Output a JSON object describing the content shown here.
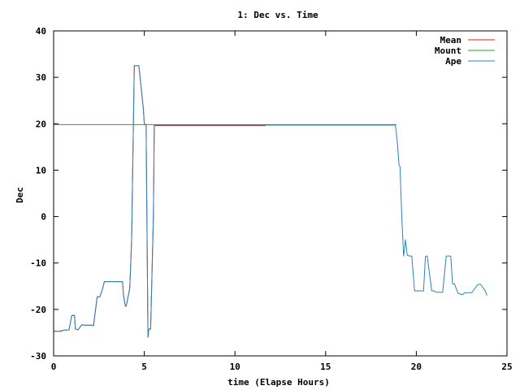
{
  "chart_data": {
    "type": "line",
    "title": "1: Dec vs. Time",
    "xlabel": "time (Elapse Hours)",
    "ylabel": "Dec",
    "xlim": [
      0,
      25
    ],
    "ylim": [
      -30,
      40
    ],
    "xticks": [
      0,
      5,
      10,
      15,
      20,
      25
    ],
    "xtick_labels": [
      "0",
      "5",
      "10",
      "15",
      "20",
      "25"
    ],
    "yticks": [
      -30,
      -20,
      -10,
      0,
      10,
      20,
      30,
      40
    ],
    "ytick_labels": [
      "-30",
      "-20",
      "-10",
      "0",
      "10",
      "20",
      "30",
      "40"
    ],
    "grid": false,
    "legend_position": "top-right",
    "series": [
      {
        "name": "Mean",
        "color": "#e41a1c",
        "x": [
          0,
          0.45,
          0.45,
          0.85,
          1.0,
          1.15,
          1.2,
          1.35,
          1.55,
          1.7,
          2.15,
          2.2,
          2.4,
          2.55,
          2.7,
          2.8,
          3.8,
          3.85,
          3.95,
          4.0,
          4.2,
          4.3,
          4.45,
          4.7,
          4.95,
          5.0,
          5.1,
          5.2,
          5.25,
          5.35,
          5.5,
          5.55,
          5.6,
          11.7
        ],
        "y": [
          -24.7,
          -24.7,
          -24.5,
          -24.4,
          -21.3,
          -21.3,
          -24.2,
          -24.4,
          -23.3,
          -23.4,
          -23.4,
          -23.5,
          -17.3,
          -17.3,
          -15.5,
          -14,
          -14,
          -16.8,
          -19.3,
          -19.3,
          -15.5,
          -5,
          32.5,
          32.5,
          23.1,
          20,
          19.8,
          -26,
          -24.2,
          -24.2,
          0,
          19.8,
          19.6,
          19.6
        ]
      },
      {
        "name": "Mount",
        "color": "#2ca02c",
        "x": [
          0,
          18.9
        ],
        "y": [
          19.8,
          19.8
        ]
      },
      {
        "name": "Ape",
        "color": "#2b83ba",
        "x": [
          0,
          0.45,
          0.45,
          0.85,
          1.0,
          1.15,
          1.2,
          1.35,
          1.55,
          1.7,
          2.15,
          2.2,
          2.4,
          2.55,
          2.7,
          2.8,
          3.8,
          3.85,
          3.95,
          4.0,
          4.2,
          4.3,
          4.45,
          4.7,
          4.95,
          5.0,
          5.1,
          5.2,
          5.25,
          5.35,
          5.5,
          5.55,
          5.6,
          18.85,
          18.95,
          19.05,
          19.1,
          19.2,
          19.3,
          19.35,
          19.4,
          19.5,
          19.6,
          19.75,
          19.9,
          20.1,
          20.4,
          20.5,
          20.55,
          20.6,
          20.85,
          20.95,
          21.1,
          21.45,
          21.65,
          21.9,
          22.0,
          22.1,
          22.3,
          22.5,
          22.6,
          22.65,
          23.05,
          23.4,
          23.55,
          23.8,
          23.9
        ],
        "y": [
          -24.7,
          -24.7,
          -24.5,
          -24.4,
          -21.3,
          -21.3,
          -24.2,
          -24.4,
          -23.3,
          -23.4,
          -23.4,
          -23.5,
          -17.3,
          -17.3,
          -15.5,
          -14,
          -14,
          -16.8,
          -19.3,
          -19.3,
          -15.5,
          -5,
          32.5,
          32.5,
          23.1,
          20,
          19.8,
          -26,
          -24.2,
          -24.2,
          0,
          19.8,
          19.7,
          19.7,
          16,
          11,
          10.8,
          0,
          -8.5,
          -7,
          -5,
          -8.3,
          -8.5,
          -8.5,
          -16,
          -16,
          -16,
          -8.6,
          -8.5,
          -8.5,
          -16,
          -16,
          -16.3,
          -16.3,
          -8.5,
          -8.5,
          -14.5,
          -14.5,
          -16.5,
          -16.8,
          -16.7,
          -16.4,
          -16.4,
          -14.6,
          -14.6,
          -16,
          -17
        ]
      }
    ]
  }
}
